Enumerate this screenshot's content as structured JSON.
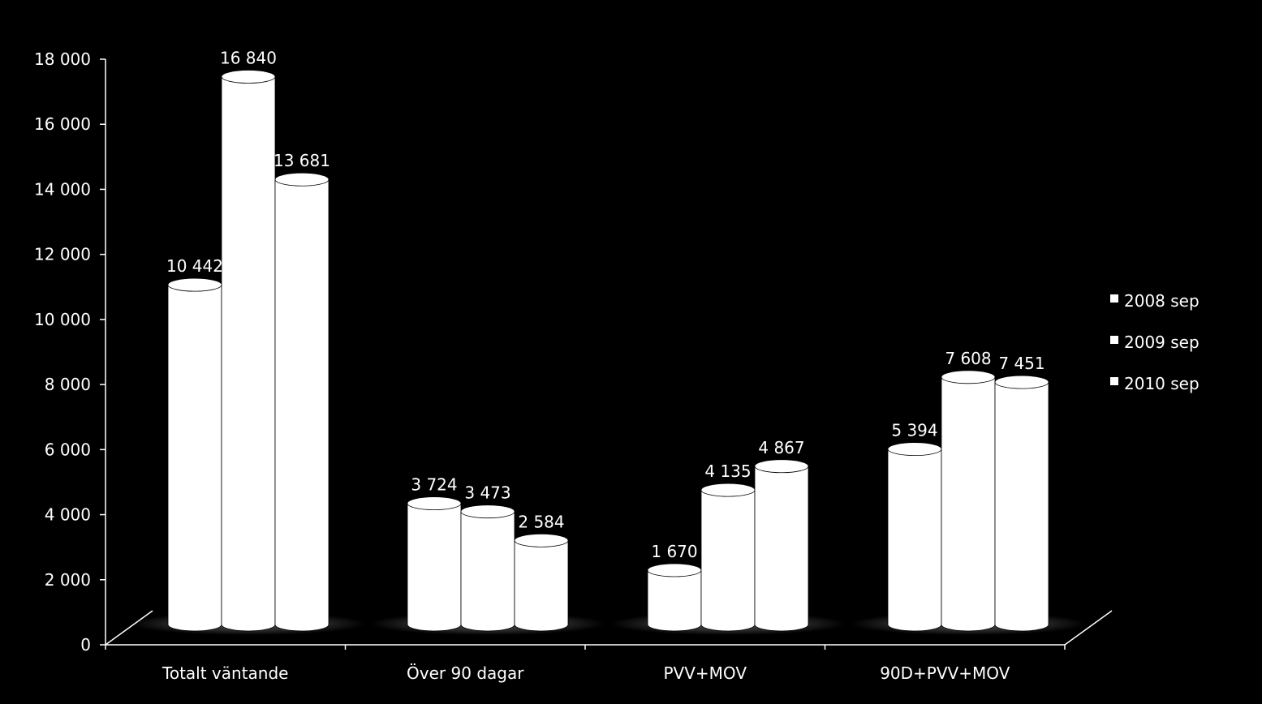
{
  "chart_data": {
    "type": "bar",
    "categories": [
      "Totalt väntande",
      "Över 90 dagar",
      "PVV+MOV",
      "90D+PVV+MOV"
    ],
    "series": [
      {
        "name": "2008 sep",
        "values": [
          10442,
          3724,
          1670,
          5394
        ]
      },
      {
        "name": "2009 sep",
        "values": [
          16840,
          3473,
          4135,
          7608
        ]
      },
      {
        "name": "2010 sep",
        "values": [
          13681,
          2584,
          4867,
          7451
        ]
      }
    ],
    "data_labels": [
      [
        "10 442",
        "3 724",
        "1 670",
        "5 394"
      ],
      [
        "16 840",
        "3 473",
        "4 135",
        "7 608"
      ],
      [
        "13 681",
        "2 584",
        "4 867",
        "7 451"
      ]
    ],
    "yticks": [
      0,
      2000,
      4000,
      6000,
      8000,
      10000,
      12000,
      14000,
      16000,
      18000
    ],
    "ytick_labels": [
      "0",
      "2 000",
      "4 000",
      "6 000",
      "8 000",
      "10 000",
      "12 000",
      "14 000",
      "16 000",
      "18 000"
    ],
    "ylim": [
      0,
      18000
    ],
    "title": "",
    "xlabel": "",
    "ylabel": "",
    "legend": "right",
    "grid": false,
    "colors": {
      "background": "#000000",
      "bars": "#ffffff",
      "axis": "#ffffff"
    }
  }
}
